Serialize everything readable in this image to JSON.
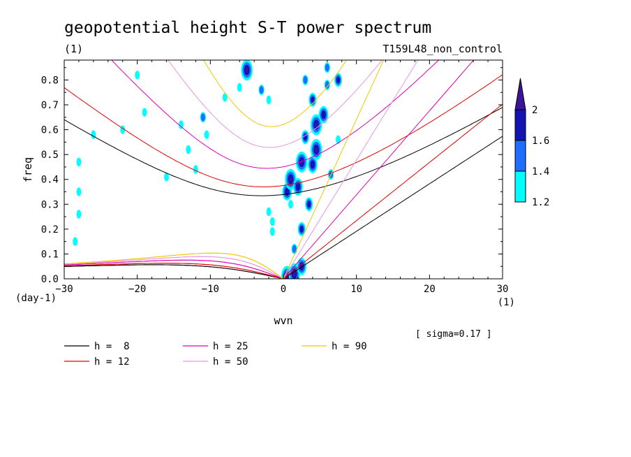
{
  "chart_data": {
    "type": "contour",
    "title": "geopotential height S-T power spectrum",
    "subtitle_left": "(1)",
    "subtitle_right": "T159L48_non_control",
    "xlabel": "wvn",
    "ylabel": "freq",
    "xunit": "(1)",
    "yunit": "(day-1)",
    "xlim": [
      -30,
      30
    ],
    "ylim": [
      0,
      0.88
    ],
    "xticks": [
      -30,
      -20,
      -10,
      0,
      10,
      20,
      30
    ],
    "yticks": [
      0.0,
      0.1,
      0.2,
      0.3,
      0.4,
      0.5,
      0.6,
      0.7,
      0.8
    ],
    "ytick_labels": [
      "0.0",
      "0.1",
      "0.2",
      "0.3",
      "0.4",
      "0.5",
      "0.6",
      "0.7",
      "0.8"
    ],
    "annotation": "[ sigma=0.17 ]",
    "colorbar": {
      "levels": [
        1.2,
        1.4,
        1.6,
        2
      ],
      "labels": [
        "1.2",
        "1.4",
        "1.6",
        "2"
      ],
      "colors": [
        "#00ffff",
        "#1e6fff",
        "#1414b4",
        "#3c1496"
      ]
    },
    "series": [
      {
        "name": "h =  8",
        "h": 8,
        "color": "#000000"
      },
      {
        "name": "h = 12",
        "h": 12,
        "color": "#e00000"
      },
      {
        "name": "h = 25",
        "h": 25,
        "color": "#e000b4"
      },
      {
        "name": "h = 50",
        "h": 50,
        "color": "#e696e6"
      },
      {
        "name": "h = 90",
        "h": 90,
        "color": "#f0c800"
      }
    ],
    "spectral_peaks": [
      {
        "wvn": 0.5,
        "freq": 0.01,
        "value": 2.0
      },
      {
        "wvn": 1.5,
        "freq": 0.02,
        "value": 2.0
      },
      {
        "wvn": 2.5,
        "freq": 0.05,
        "value": 1.8
      },
      {
        "wvn": 1.5,
        "freq": 0.12,
        "value": 1.4
      },
      {
        "wvn": 2.5,
        "freq": 0.2,
        "value": 1.6
      },
      {
        "wvn": -1.5,
        "freq": 0.23,
        "value": 1.3
      },
      {
        "wvn": 3.5,
        "freq": 0.3,
        "value": 1.6
      },
      {
        "wvn": 0.5,
        "freq": 0.35,
        "value": 1.8
      },
      {
        "wvn": 1.0,
        "freq": 0.4,
        "value": 2.0
      },
      {
        "wvn": 2.0,
        "freq": 0.37,
        "value": 1.8
      },
      {
        "wvn": 2.5,
        "freq": 0.47,
        "value": 2.0
      },
      {
        "wvn": 4.0,
        "freq": 0.46,
        "value": 1.8
      },
      {
        "wvn": 4.5,
        "freq": 0.52,
        "value": 2.0
      },
      {
        "wvn": 3.0,
        "freq": 0.57,
        "value": 1.6
      },
      {
        "wvn": 4.5,
        "freq": 0.62,
        "value": 2.0
      },
      {
        "wvn": 5.5,
        "freq": 0.66,
        "value": 1.8
      },
      {
        "wvn": 4.0,
        "freq": 0.72,
        "value": 1.6
      },
      {
        "wvn": 6.0,
        "freq": 0.78,
        "value": 1.4
      },
      {
        "wvn": 7.5,
        "freq": 0.8,
        "value": 1.6
      },
      {
        "wvn": 6.0,
        "freq": 0.85,
        "value": 1.4
      },
      {
        "wvn": -5.0,
        "freq": 0.84,
        "value": 2.0
      },
      {
        "wvn": 6.5,
        "freq": 0.42,
        "value": 1.4
      },
      {
        "wvn": 1.0,
        "freq": 0.3,
        "value": 1.3
      },
      {
        "wvn": -2.0,
        "freq": 0.27,
        "value": 1.3
      },
      {
        "wvn": -1.5,
        "freq": 0.19,
        "value": 1.3
      },
      {
        "wvn": -11.0,
        "freq": 0.65,
        "value": 1.4
      },
      {
        "wvn": -10.5,
        "freq": 0.58,
        "value": 1.3
      },
      {
        "wvn": -28.0,
        "freq": 0.47,
        "value": 1.3
      },
      {
        "wvn": -19.0,
        "freq": 0.67,
        "value": 1.3
      },
      {
        "wvn": -13.0,
        "freq": 0.52,
        "value": 1.3
      },
      {
        "wvn": -3.0,
        "freq": 0.76,
        "value": 1.4
      },
      {
        "wvn": -2.0,
        "freq": 0.72,
        "value": 1.3
      },
      {
        "wvn": -8.0,
        "freq": 0.73,
        "value": 1.3
      },
      {
        "wvn": -26.0,
        "freq": 0.58,
        "value": 1.3
      },
      {
        "wvn": -20.0,
        "freq": 0.82,
        "value": 1.3
      },
      {
        "wvn": -14.0,
        "freq": 0.62,
        "value": 1.3
      },
      {
        "wvn": -16.0,
        "freq": 0.41,
        "value": 1.3
      },
      {
        "wvn": -22.0,
        "freq": 0.6,
        "value": 1.3
      },
      {
        "wvn": -28.5,
        "freq": 0.15,
        "value": 1.3
      },
      {
        "wvn": -28.0,
        "freq": 0.35,
        "value": 1.3
      },
      {
        "wvn": -6.0,
        "freq": 0.77,
        "value": 1.3
      },
      {
        "wvn": 3.0,
        "freq": 0.8,
        "value": 1.4
      },
      {
        "wvn": -12.0,
        "freq": 0.44,
        "value": 1.3
      },
      {
        "wvn": -28.0,
        "freq": 0.26,
        "value": 1.3
      },
      {
        "wvn": 7.5,
        "freq": 0.56,
        "value": 1.3
      }
    ]
  }
}
